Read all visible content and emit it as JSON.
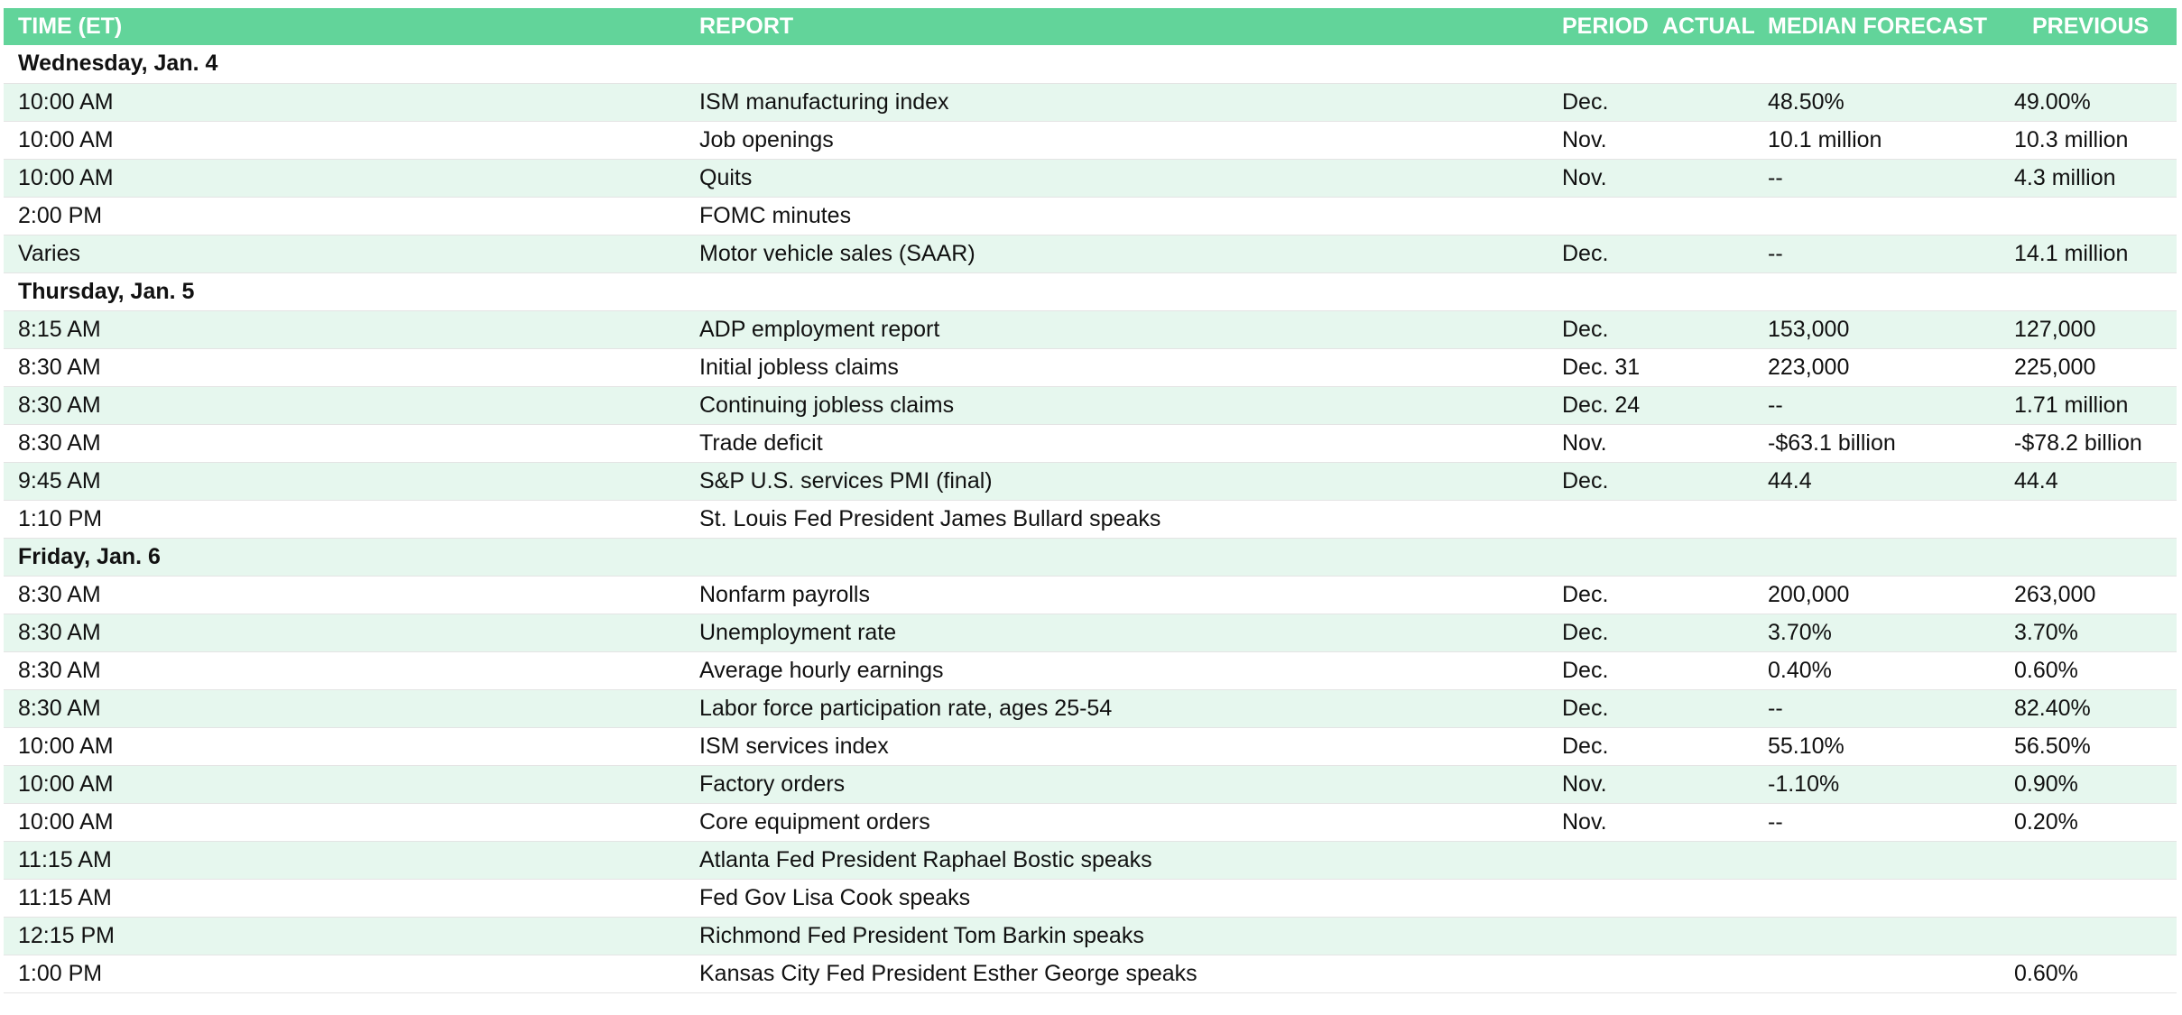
{
  "colors": {
    "header_bg": "#62d49a",
    "header_text": "#ffffff",
    "row_shade": "#e6f7ee",
    "row_plain": "#ffffff"
  },
  "headers": {
    "time": "TIME (ET)",
    "report": "REPORT",
    "period": "PERIOD",
    "actual": "ACTUAL",
    "median": "MEDIAN FORECAST",
    "previous": "PREVIOUS"
  },
  "rows": [
    {
      "kind": "day",
      "label": "Wednesday, Jan. 4"
    },
    {
      "kind": "event",
      "time": "10:00 AM",
      "report": "ISM manufacturing index",
      "period": "Dec.",
      "actual": "",
      "median": "48.50%",
      "previous": "49.00%"
    },
    {
      "kind": "event",
      "time": "10:00 AM",
      "report": "Job openings",
      "period": "Nov.",
      "actual": "",
      "median": "10.1 million",
      "previous": "10.3 million"
    },
    {
      "kind": "event",
      "time": "10:00 AM",
      "report": "Quits",
      "period": "Nov.",
      "actual": "",
      "median": "--",
      "previous": "4.3 million"
    },
    {
      "kind": "event",
      "time": "2:00 PM",
      "report": "FOMC minutes",
      "period": "",
      "actual": "",
      "median": "",
      "previous": ""
    },
    {
      "kind": "event",
      "time": "Varies",
      "report": "Motor vehicle sales (SAAR)",
      "period": "Dec.",
      "actual": "",
      "median": "--",
      "previous": "14.1 million"
    },
    {
      "kind": "day",
      "label": "Thursday, Jan. 5"
    },
    {
      "kind": "event",
      "time": "8:15 AM",
      "report": "ADP employment report",
      "period": "Dec.",
      "actual": "",
      "median": "153,000",
      "previous": "127,000"
    },
    {
      "kind": "event",
      "time": "8:30 AM",
      "report": "Initial jobless claims",
      "period": "Dec. 31",
      "actual": "",
      "median": "223,000",
      "previous": "225,000"
    },
    {
      "kind": "event",
      "time": "8:30 AM",
      "report": "Continuing jobless claims",
      "period": "Dec. 24",
      "actual": "",
      "median": "--",
      "previous": "1.71 million"
    },
    {
      "kind": "event",
      "time": "8:30 AM",
      "report": "Trade deficit",
      "period": "Nov.",
      "actual": "",
      "median": "-$63.1 billion",
      "previous": "-$78.2 billion"
    },
    {
      "kind": "event",
      "time": "9:45 AM",
      "report": "S&P U.S. services PMI (final)",
      "period": "Dec.",
      "actual": "",
      "median": "44.4",
      "previous": "44.4"
    },
    {
      "kind": "event",
      "time": "1:10 PM",
      "report": "St. Louis Fed President James Bullard speaks",
      "period": "",
      "actual": "",
      "median": "",
      "previous": ""
    },
    {
      "kind": "day",
      "label": "Friday, Jan. 6"
    },
    {
      "kind": "event",
      "time": "8:30 AM",
      "report": "Nonfarm payrolls",
      "period": "Dec.",
      "actual": "",
      "median": "200,000",
      "previous": "263,000"
    },
    {
      "kind": "event",
      "time": "8:30 AM",
      "report": "Unemployment rate",
      "period": "Dec.",
      "actual": "",
      "median": "3.70%",
      "previous": "3.70%"
    },
    {
      "kind": "event",
      "time": "8:30 AM",
      "report": "Average hourly earnings",
      "period": "Dec.",
      "actual": "",
      "median": "0.40%",
      "previous": "0.60%"
    },
    {
      "kind": "event",
      "time": "8:30 AM",
      "report": "Labor force participation rate, ages 25-54",
      "period": "Dec.",
      "actual": "",
      "median": "--",
      "previous": "82.40%"
    },
    {
      "kind": "event",
      "time": "10:00 AM",
      "report": "ISM services index",
      "period": "Dec.",
      "actual": "",
      "median": "55.10%",
      "previous": "56.50%"
    },
    {
      "kind": "event",
      "time": "10:00 AM",
      "report": "Factory orders",
      "period": "Nov.",
      "actual": "",
      "median": "-1.10%",
      "previous": "0.90%"
    },
    {
      "kind": "event",
      "time": "10:00 AM",
      "report": "Core equipment orders",
      "period": "Nov.",
      "actual": "",
      "median": "--",
      "previous": "0.20%"
    },
    {
      "kind": "event",
      "time": "11:15 AM",
      "report": "Atlanta Fed President Raphael Bostic speaks",
      "period": "",
      "actual": "",
      "median": "",
      "previous": ""
    },
    {
      "kind": "event",
      "time": "11:15 AM",
      "report": "Fed Gov Lisa Cook speaks",
      "period": "",
      "actual": "",
      "median": "",
      "previous": ""
    },
    {
      "kind": "event",
      "time": "12:15 PM",
      "report": "Richmond Fed President Tom Barkin speaks",
      "period": "",
      "actual": "",
      "median": "",
      "previous": ""
    },
    {
      "kind": "event",
      "time": "1:00 PM",
      "report": "Kansas City Fed President Esther George speaks",
      "period": "",
      "actual": "",
      "median": "",
      "previous": "0.60%"
    }
  ]
}
